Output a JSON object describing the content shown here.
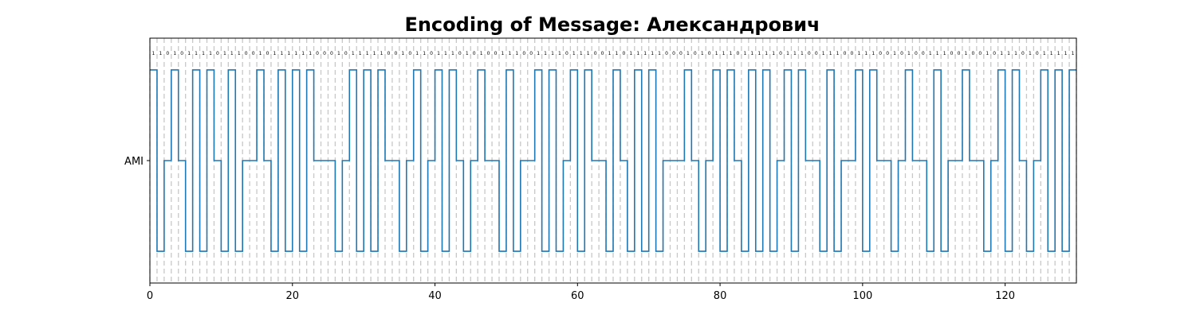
{
  "chart_data": {
    "type": "line",
    "title": "Encoding of Message: Александрович",
    "xlabel": "",
    "ylabel": "",
    "xlim": [
      0,
      130
    ],
    "ylim": [
      -1.35,
      1.35
    ],
    "xticks": [
      0,
      20,
      40,
      60,
      80,
      100,
      120
    ],
    "yticks": [
      {
        "value": 0,
        "label": "AMI"
      }
    ],
    "grid": "vertical dashed lines at every bit boundary",
    "legend": "none",
    "colors": {
      "signal": "#1f77b4",
      "grid": "#c8c8c8"
    },
    "series": [
      {
        "encoding": "AMI",
        "bits": [
          1,
          1,
          0,
          1,
          0,
          1,
          1,
          1,
          1,
          0,
          1,
          1,
          1,
          0,
          0,
          1,
          0,
          1,
          1,
          1,
          1,
          1,
          1,
          0,
          0,
          0,
          1,
          0,
          1,
          1,
          1,
          1,
          1,
          0,
          0,
          1,
          0,
          1,
          1,
          0,
          1,
          1,
          1,
          0,
          1,
          0,
          1,
          0,
          0,
          1,
          1,
          1,
          0,
          0,
          1,
          1,
          1,
          1,
          0,
          1,
          1,
          1,
          0,
          0,
          1,
          1,
          0,
          1,
          1,
          1,
          1,
          1,
          0,
          0,
          0,
          1,
          0,
          1,
          0,
          1,
          1,
          1,
          0,
          1,
          1,
          1,
          1,
          1,
          0,
          1,
          1,
          1,
          0,
          0,
          1,
          1,
          1,
          0,
          0,
          1,
          1,
          1,
          0,
          0,
          1,
          0,
          1,
          0,
          0,
          1,
          1,
          1,
          0,
          0,
          1,
          0,
          0,
          1,
          0,
          1,
          1,
          1,
          0,
          1,
          0,
          1,
          1,
          1,
          1,
          1
        ]
      }
    ]
  }
}
